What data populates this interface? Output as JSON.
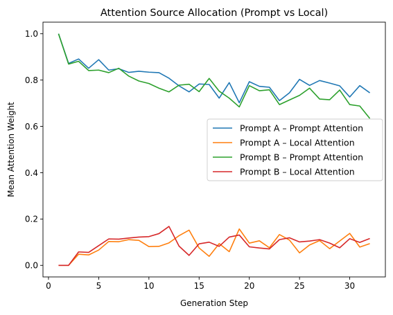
{
  "chart_data": {
    "type": "line",
    "title": "Attention Source Allocation (Prompt vs Local)",
    "xlabel": "Generation Step",
    "ylabel": "Mean Attention Weight",
    "xlim": [
      -0.55,
      33.55
    ],
    "ylim": [
      -0.05,
      1.05
    ],
    "xticks": [
      0,
      5,
      10,
      15,
      20,
      25,
      30
    ],
    "yticks": [
      0.0,
      0.2,
      0.4,
      0.6,
      0.8,
      1.0
    ],
    "ytick_labels": [
      "0.0",
      "0.2",
      "0.4",
      "0.6",
      "0.8",
      "1.0"
    ],
    "grid": false,
    "legend_position": "center-right",
    "x": [
      1,
      2,
      3,
      4,
      5,
      6,
      7,
      8,
      9,
      10,
      11,
      12,
      13,
      14,
      15,
      16,
      17,
      18,
      19,
      20,
      21,
      22,
      23,
      24,
      25,
      26,
      27,
      28,
      29,
      30,
      31,
      32
    ],
    "series": [
      {
        "name": "Prompt A – Prompt Attention",
        "color": "#1f77b4",
        "values": [
          1.0,
          0.872,
          0.891,
          0.851,
          0.888,
          0.843,
          0.849,
          0.833,
          0.838,
          0.834,
          0.832,
          0.808,
          0.775,
          0.749,
          0.783,
          0.781,
          0.722,
          0.789,
          0.702,
          0.793,
          0.773,
          0.769,
          0.711,
          0.745,
          0.803,
          0.777,
          0.798,
          0.787,
          0.775,
          0.727,
          0.776,
          0.745
        ]
      },
      {
        "name": "Prompt A – Local Attention",
        "color": "#ff7f0e",
        "values": [
          0.0,
          0.0,
          0.048,
          0.045,
          0.066,
          0.103,
          0.102,
          0.111,
          0.108,
          0.081,
          0.082,
          0.097,
          0.128,
          0.152,
          0.075,
          0.039,
          0.094,
          0.059,
          0.157,
          0.096,
          0.106,
          0.076,
          0.133,
          0.109,
          0.054,
          0.088,
          0.107,
          0.072,
          0.105,
          0.138,
          0.079,
          0.094
        ]
      },
      {
        "name": "Prompt B – Prompt Attention",
        "color": "#2ca02c",
        "values": [
          1.0,
          0.869,
          0.881,
          0.841,
          0.843,
          0.832,
          0.851,
          0.817,
          0.796,
          0.785,
          0.765,
          0.749,
          0.778,
          0.782,
          0.75,
          0.807,
          0.752,
          0.722,
          0.684,
          0.776,
          0.754,
          0.758,
          0.694,
          0.714,
          0.734,
          0.765,
          0.718,
          0.715,
          0.757,
          0.694,
          0.688,
          0.634
        ]
      },
      {
        "name": "Prompt B – Local Attention",
        "color": "#d62728",
        "values": [
          0.0,
          0.0,
          0.058,
          0.056,
          0.085,
          0.114,
          0.113,
          0.118,
          0.122,
          0.124,
          0.137,
          0.168,
          0.083,
          0.043,
          0.093,
          0.1,
          0.082,
          0.122,
          0.131,
          0.08,
          0.075,
          0.071,
          0.111,
          0.119,
          0.101,
          0.105,
          0.111,
          0.096,
          0.076,
          0.115,
          0.099,
          0.116
        ]
      }
    ]
  }
}
